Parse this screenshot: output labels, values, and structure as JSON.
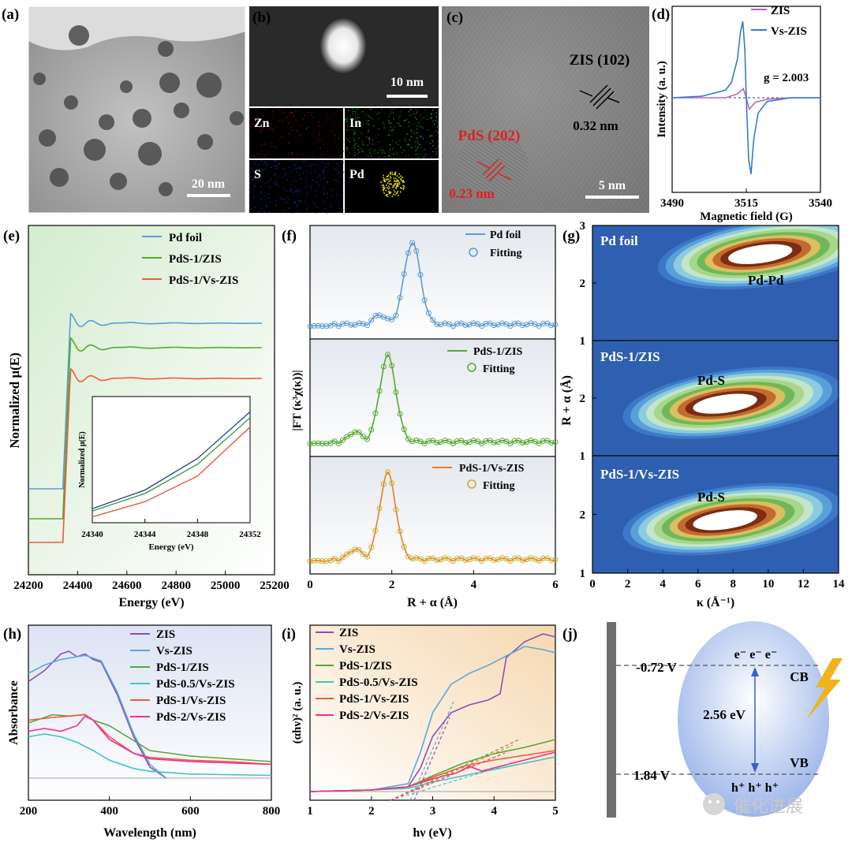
{
  "figure": {
    "panel_labels": [
      "(a)",
      "(b)",
      "(c)",
      "(d)",
      "(e)",
      "(f)",
      "(g)",
      "(h)",
      "(i)",
      "(j)"
    ],
    "watermark": "催化进展"
  },
  "panel_a": {
    "scale_bar": "20 nm"
  },
  "panel_b": {
    "scale_bar": "10 nm",
    "maps": [
      "Zn",
      "In",
      "S",
      "Pd"
    ],
    "map_colors": [
      "#8a0f14",
      "#1f8f1f",
      "#1a2a9a",
      "#e8e000"
    ]
  },
  "panel_c": {
    "lattice1_label": "ZIS (102)",
    "lattice1_spacing": "0.32 nm",
    "lattice2_label": "PdS (202)",
    "lattice2_spacing": "0.23 nm",
    "scale_bar": "5 nm"
  },
  "colors": {
    "Pd foil": "#5b9bd5",
    "PdS-1/ZIS": "#56a832",
    "PdS-1/Vs-ZIS": "#f05a3a",
    "ZIS": "#8a4fb5",
    "Vs-ZIS": "#5aa9d9",
    "PdS-0.5/Vs-ZIS": "#3ec4c4",
    "PdS-2/Vs-ZIS": "#ec2f8c"
  },
  "chart_data": [
    {
      "panel": "d",
      "type": "line",
      "xlabel": "Magnetic field (G)",
      "ylabel": "Intensity (a. u.)",
      "xlim": [
        3490,
        3540
      ],
      "xticks": [
        3490,
        3515,
        3540
      ],
      "annotation": "g = 2.003",
      "legend": [
        "ZIS",
        "Vs-ZIS"
      ],
      "legend_position": "top-right",
      "series": [
        {
          "name": "ZIS",
          "color": "#c060c0",
          "x": [
            3490,
            3500,
            3508,
            3512,
            3514,
            3515,
            3516,
            3518,
            3522,
            3530,
            3540
          ],
          "y": [
            0,
            0,
            0,
            0.05,
            0.12,
            0,
            -0.15,
            -0.06,
            -0.02,
            0,
            0
          ]
        },
        {
          "name": "Vs-ZIS",
          "color": "#2f7fc9",
          "x": [
            3490,
            3500,
            3508,
            3510,
            3512,
            3513,
            3513.8,
            3514.5,
            3515,
            3515.8,
            3516.6,
            3517.5,
            3519,
            3522,
            3530,
            3540
          ],
          "y": [
            0,
            0.02,
            0.1,
            0.2,
            0.5,
            0.85,
            1.0,
            0.65,
            0,
            -0.8,
            -1.0,
            -0.55,
            -0.2,
            -0.05,
            0,
            0
          ]
        }
      ]
    },
    {
      "panel": "e",
      "type": "line",
      "xlabel": "Energy (eV)",
      "ylabel": "Normalized μ(E)",
      "xlim": [
        24200,
        25200
      ],
      "xticks": [
        24200,
        24400,
        24600,
        24800,
        25000,
        25200
      ],
      "legend": [
        "Pd foil",
        "PdS-1/ZIS",
        "PdS-1/Vs-ZIS"
      ],
      "legend_position": "top-right",
      "series": [
        {
          "name": "Pd foil",
          "offset": 2.1
        },
        {
          "name": "PdS-1/ZIS",
          "offset": 1.1
        },
        {
          "name": "PdS-1/Vs-ZIS",
          "offset": 0
        }
      ],
      "inset": {
        "xlabel": "Energy (eV)",
        "ylabel": "Normalized μ(E)",
        "xlim": [
          24340,
          24352
        ],
        "xticks": [
          24340,
          24344,
          24348,
          24352
        ],
        "series": [
          {
            "name": "Pd foil",
            "color": "#2140a0",
            "x": [
              24340,
              24344,
              24348,
              24352
            ],
            "y": [
              0.12,
              0.28,
              0.55,
              0.95
            ]
          },
          {
            "name": "PdS-1/ZIS",
            "color": "#3a9a2a",
            "x": [
              24340,
              24344,
              24348,
              24352
            ],
            "y": [
              0.1,
              0.25,
              0.5,
              0.9
            ]
          },
          {
            "name": "PdS-1/Vs-ZIS",
            "color": "#e85030",
            "x": [
              24340,
              24344,
              24348,
              24352
            ],
            "y": [
              0.05,
              0.18,
              0.4,
              0.82
            ]
          }
        ]
      }
    },
    {
      "panel": "f",
      "type": "line",
      "xlabel": "R + α (Å)",
      "ylabel": "|FT (κ³χ(κ))|",
      "xlim": [
        0,
        6
      ],
      "xticks": [
        0,
        2,
        4,
        6
      ],
      "subplots": [
        {
          "legend": [
            "Pd foil",
            "Fitting"
          ],
          "color": "#5b9bd5",
          "peak": 2.5
        },
        {
          "legend": [
            "PdS-1/ZIS",
            "Fitting"
          ],
          "color": "#56a832",
          "peak": 1.9
        },
        {
          "legend": [
            "PdS-1/Vs-ZIS",
            "Fitting"
          ],
          "color": "#ee7a28",
          "fit_color": "#c9b020",
          "peak": 1.9
        }
      ]
    },
    {
      "panel": "g",
      "type": "heatmap",
      "xlabel": "κ (Å⁻¹)",
      "ylabel": "R + α (Å)",
      "xlim": [
        0,
        14
      ],
      "xticks": [
        0,
        2,
        4,
        6,
        8,
        10,
        12,
        14
      ],
      "subplots": [
        {
          "title": "Pd foil",
          "peak_label": "Pd-Pd",
          "peak": [
            9.5,
            2.5
          ],
          "ylim": [
            1,
            3
          ],
          "yticks": [
            1,
            2,
            3
          ]
        },
        {
          "title": "PdS-1/ZIS",
          "peak_label": "Pd-S",
          "peak": [
            7.5,
            1.9
          ],
          "ylim": [
            1,
            3
          ],
          "yticks": [
            1,
            2
          ]
        },
        {
          "title": "PdS-1/Vs-ZIS",
          "peak_label": "Pd-S",
          "peak": [
            7.5,
            1.9
          ],
          "ylim": [
            1,
            3
          ],
          "yticks": [
            1,
            2
          ]
        }
      ]
    },
    {
      "panel": "h",
      "type": "line",
      "xlabel": "Wavelength (nm)",
      "ylabel": "Absorbance",
      "xlim": [
        200,
        800
      ],
      "xticks": [
        200,
        400,
        600,
        800
      ],
      "legend": [
        "ZIS",
        "Vs-ZIS",
        "PdS-1/ZIS",
        "PdS-0.5/Vs-ZIS",
        "PdS-1/Vs-ZIS",
        "PdS-2/Vs-ZIS"
      ],
      "legend_position": "top-right",
      "series": [
        {
          "name": "ZIS",
          "x": [
            200,
            240,
            280,
            300,
            320,
            340,
            360,
            380,
            420,
            460,
            500,
            540
          ],
          "y": [
            0.7,
            0.78,
            0.9,
            0.92,
            0.88,
            0.9,
            0.86,
            0.84,
            0.6,
            0.3,
            0.08,
            0
          ]
        },
        {
          "name": "Vs-ZIS",
          "x": [
            200,
            240,
            280,
            300,
            320,
            340,
            360,
            380,
            420,
            460,
            500,
            540
          ],
          "y": [
            0.76,
            0.82,
            0.86,
            0.87,
            0.88,
            0.89,
            0.87,
            0.85,
            0.62,
            0.32,
            0.1,
            0
          ]
        },
        {
          "name": "PdS-1/ZIS",
          "x": [
            200,
            260,
            300,
            340,
            360,
            400,
            500,
            600,
            700,
            800
          ],
          "y": [
            0.4,
            0.46,
            0.45,
            0.46,
            0.42,
            0.38,
            0.2,
            0.16,
            0.14,
            0.12
          ]
        },
        {
          "name": "PdS-0.5/Vs-ZIS",
          "x": [
            200,
            240,
            280,
            320,
            360,
            400,
            460,
            500,
            600,
            800
          ],
          "y": [
            0.3,
            0.32,
            0.3,
            0.26,
            0.2,
            0.13,
            0.07,
            0.05,
            0.03,
            0.02
          ]
        },
        {
          "name": "PdS-1/Vs-ZIS",
          "x": [
            200,
            260,
            300,
            340,
            360,
            400,
            460,
            500,
            600,
            700,
            800
          ],
          "y": [
            0.42,
            0.44,
            0.45,
            0.46,
            0.42,
            0.3,
            0.18,
            0.15,
            0.13,
            0.12,
            0.1
          ]
        },
        {
          "name": "PdS-2/Vs-ZIS",
          "x": [
            200,
            240,
            280,
            320,
            340,
            360,
            400,
            460,
            500,
            600,
            800
          ],
          "y": [
            0.34,
            0.36,
            0.34,
            0.38,
            0.45,
            0.42,
            0.28,
            0.18,
            0.14,
            0.12,
            0.1
          ]
        }
      ]
    },
    {
      "panel": "i",
      "type": "line",
      "xlabel": "hν (eV)",
      "ylabel": "(αhν)² (a. u.)",
      "xlim": [
        1,
        5
      ],
      "xticks": [
        1,
        2,
        3,
        4,
        5
      ],
      "legend": [
        "ZIS",
        "Vs-ZIS",
        "PdS-1/ZIS",
        "PdS-0.5/Vs-ZIS",
        "PdS-1/Vs-ZIS",
        "PdS-2/Vs-ZIS"
      ],
      "legend_position": "top-left",
      "series": [
        {
          "name": "ZIS",
          "x": [
            1,
            2,
            2.6,
            2.8,
            3.0,
            3.3,
            3.6,
            3.9,
            4.1,
            4.2,
            4.5,
            4.8,
            5
          ],
          "y": [
            0,
            0.01,
            0.03,
            0.15,
            0.35,
            0.5,
            0.55,
            0.58,
            0.62,
            0.85,
            0.95,
            1.0,
            0.98
          ]
        },
        {
          "name": "Vs-ZIS",
          "x": [
            1,
            2,
            2.6,
            2.8,
            3.0,
            3.3,
            3.6,
            3.9,
            4.2,
            4.5,
            4.8,
            5
          ],
          "y": [
            0,
            0.01,
            0.05,
            0.25,
            0.5,
            0.68,
            0.75,
            0.8,
            0.86,
            0.92,
            0.9,
            0.88
          ]
        },
        {
          "name": "PdS-1/ZIS",
          "x": [
            1,
            2,
            2.6,
            3,
            3.5,
            4,
            4.5,
            5
          ],
          "y": [
            0,
            0.01,
            0.03,
            0.1,
            0.18,
            0.24,
            0.28,
            0.33
          ]
        },
        {
          "name": "PdS-0.5/Vs-ZIS",
          "x": [
            1,
            2,
            2.6,
            3,
            3.5,
            4,
            4.5,
            5
          ],
          "y": [
            0,
            0.01,
            0.02,
            0.06,
            0.1,
            0.14,
            0.18,
            0.22
          ]
        },
        {
          "name": "PdS-1/Vs-ZIS",
          "x": [
            1,
            2,
            2.6,
            3,
            3.5,
            4,
            4.5,
            5
          ],
          "y": [
            0,
            0.01,
            0.03,
            0.09,
            0.16,
            0.2,
            0.23,
            0.26
          ]
        },
        {
          "name": "PdS-2/Vs-ZIS",
          "x": [
            1,
            2,
            2.6,
            3,
            3.4,
            3.6,
            3.8,
            4,
            4.5,
            5
          ],
          "y": [
            0,
            0.01,
            0.03,
            0.08,
            0.12,
            0.16,
            0.13,
            0.15,
            0.2,
            0.25
          ]
        }
      ]
    },
    {
      "panel": "j",
      "type": "diagram",
      "cb_potential": "-0.72 V",
      "vb_potential": "1.84 V",
      "band_gap": "2.56 eV",
      "cb_label": "CB",
      "vb_label": "VB",
      "electrons": "e⁻ e⁻ e⁻",
      "holes": "h⁺ h⁺ h⁺"
    }
  ]
}
